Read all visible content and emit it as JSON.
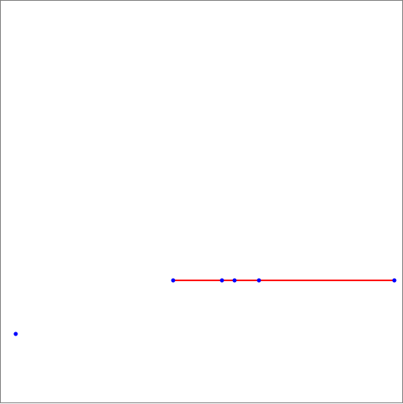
{
  "diagram": {
    "segment_color": "#ff0000",
    "point_color": "#0000ff",
    "segment": {
      "endpoints": [
        "p1",
        "p5"
      ]
    },
    "points": [
      {
        "id": "p1",
        "on_segment": true
      },
      {
        "id": "p2",
        "on_segment": true
      },
      {
        "id": "p3",
        "on_segment": true
      },
      {
        "id": "p4",
        "on_segment": true
      },
      {
        "id": "p5",
        "on_segment": true
      },
      {
        "id": "p6",
        "on_segment": false
      }
    ]
  }
}
